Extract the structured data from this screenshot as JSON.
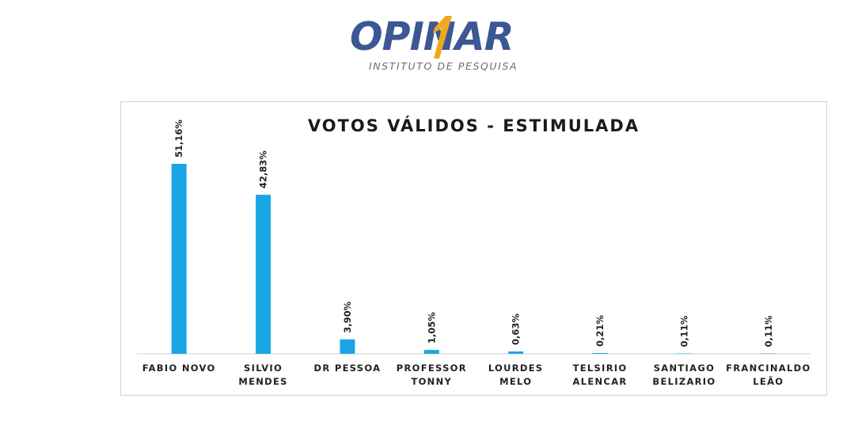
{
  "logo": {
    "brand": "OPINAR",
    "tagline": "INSTITUTO DE PESQUISA",
    "colors": {
      "word": "#3b5794",
      "accent": "#f0a81c",
      "tagline": "#6c6c6c"
    }
  },
  "chart_data": {
    "type": "bar",
    "title": "VOTOS VÁLIDOS - ESTIMULADA",
    "xlabel": "",
    "ylabel": "",
    "ylim": [
      0,
      55
    ],
    "grid": false,
    "legend": "none",
    "bar_color": "#1aa6e4",
    "categories": [
      [
        "FABIO NOVO"
      ],
      [
        "SILVIO",
        "MENDES"
      ],
      [
        "DR PESSOA"
      ],
      [
        "PROFESSOR",
        "TONNY"
      ],
      [
        "LOURDES",
        "MELO"
      ],
      [
        "TELSIRIO",
        "ALENCAR"
      ],
      [
        "SANTIAGO",
        "BELIZARIO"
      ],
      [
        "FRANCINALDO",
        "LEÃO"
      ]
    ],
    "values": [
      51.16,
      42.83,
      3.9,
      1.05,
      0.63,
      0.21,
      0.11,
      0.11
    ],
    "labels": [
      "51,16%",
      "42,83%",
      "3,90%",
      "1,05%",
      "0,63%",
      "0,21%",
      "0,11%",
      "0,11%"
    ]
  }
}
